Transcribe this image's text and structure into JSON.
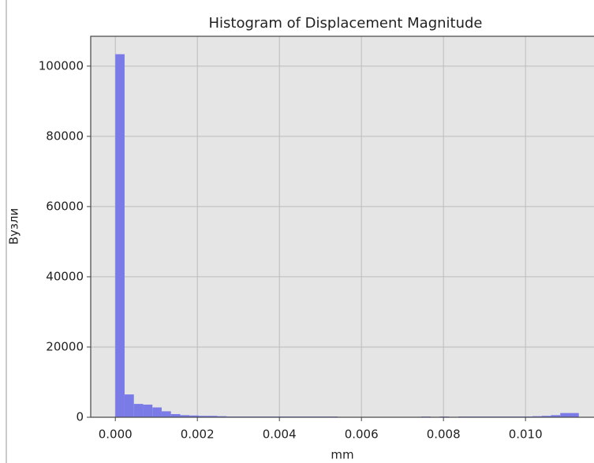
{
  "chart_data": {
    "type": "histogram",
    "title": "Histogram of Displacement Magnitude",
    "x_label": "mm",
    "y_label": "Вузли",
    "bins": [
      0,
      0.000226,
      0.000452,
      0.000678,
      0.000904,
      0.00113,
      0.001356,
      0.001582,
      0.001808,
      0.002034,
      0.00226,
      0.002486,
      0.002712,
      0.002938,
      0.003164,
      0.00339,
      0.003616,
      0.003842,
      0.004068,
      0.004294,
      0.00452,
      0.004746,
      0.004972,
      0.005198,
      0.005424,
      0.00565,
      0.005876,
      0.006102,
      0.006328,
      0.006554,
      0.00678,
      0.007006,
      0.007232,
      0.007458,
      0.007684,
      0.00791,
      0.008136,
      0.008362,
      0.008588,
      0.008814,
      0.00904,
      0.009266,
      0.009492,
      0.009718,
      0.009944,
      0.01017,
      0.010396,
      0.010622,
      0.010848,
      0.011074,
      0.0113
    ],
    "values": [
      103400,
      6500,
      3800,
      3600,
      2800,
      1700,
      900,
      600,
      500,
      400,
      400,
      300,
      200,
      200,
      200,
      200,
      200,
      200,
      200,
      200,
      200,
      200,
      200,
      200,
      50,
      30,
      20,
      20,
      20,
      20,
      20,
      20,
      100,
      200,
      50,
      200,
      50,
      200,
      200,
      200,
      200,
      200,
      200,
      200,
      200,
      300,
      400,
      600,
      1200,
      1200
    ],
    "color": "#7b7be8",
    "xlim": [
      -0.0006,
      0.01167
    ],
    "ylim": [
      0,
      108500
    ],
    "xticks": [
      {
        "value": 0,
        "label": "0.000"
      },
      {
        "value": 0.002,
        "label": "0.002"
      },
      {
        "value": 0.004,
        "label": "0.004"
      },
      {
        "value": 0.006,
        "label": "0.006"
      },
      {
        "value": 0.008,
        "label": "0.008"
      },
      {
        "value": 0.01,
        "label": "0.010"
      }
    ],
    "yticks": [
      0,
      20000,
      40000,
      60000,
      80000,
      100000
    ],
    "grid": true
  }
}
